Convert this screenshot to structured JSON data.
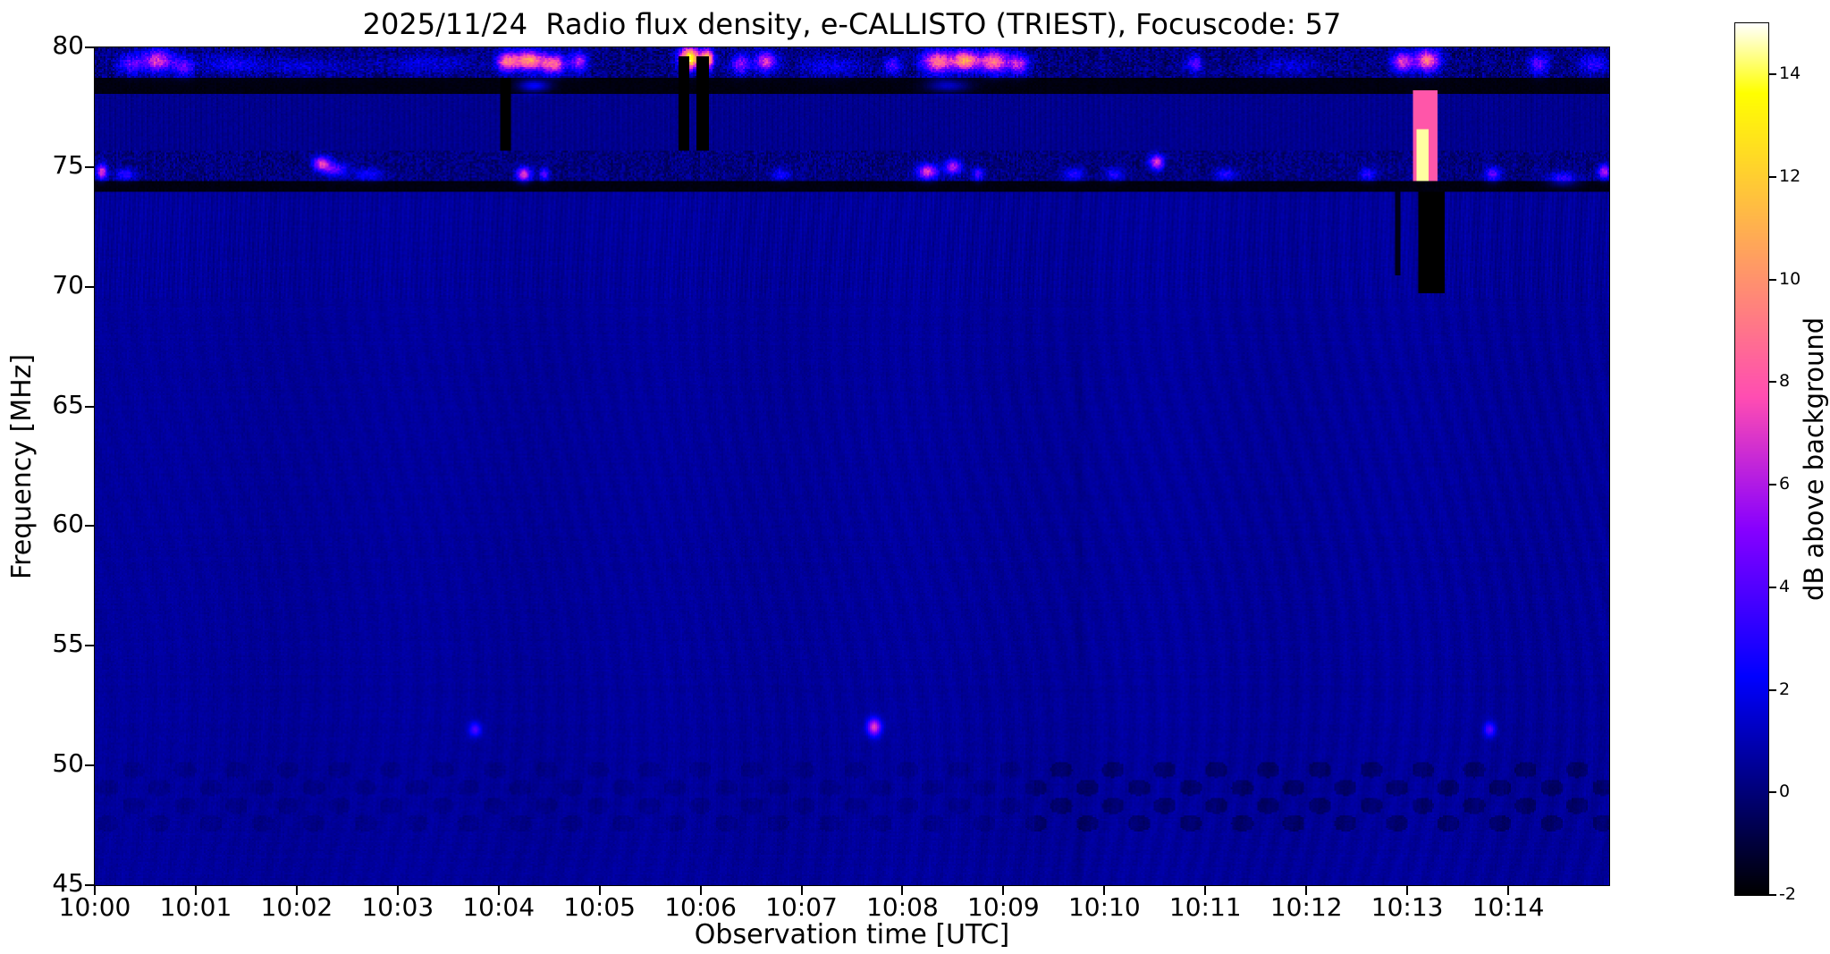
{
  "title": "2025/11/24  Radio flux density, e-CALLISTO (TRIEST), Focuscode: 57",
  "chart_data": {
    "type": "heatmap",
    "title": "2025/11/24  Radio flux density, e-CALLISTO (TRIEST), Focuscode: 57",
    "xlabel": "Observation time [UTC]",
    "ylabel": "Frequency [MHz]",
    "colorbar_label": "dB above background",
    "x_tick_labels": [
      "10:00",
      "10:01",
      "10:02",
      "10:03",
      "10:04",
      "10:05",
      "10:06",
      "10:07",
      "10:08",
      "10:09",
      "10:10",
      "10:11",
      "10:12",
      "10:13",
      "10:14"
    ],
    "x_range_minutes": [
      0,
      15
    ],
    "y_ticks": [
      45,
      50,
      55,
      60,
      65,
      70,
      75,
      80
    ],
    "ylim": [
      45,
      80
    ],
    "colorbar_ticks": [
      -2,
      0,
      2,
      4,
      6,
      8,
      10,
      12,
      14
    ],
    "clim": [
      -2,
      15
    ],
    "colormap": "gnuplot2",
    "grid": false,
    "background_db": 0.55,
    "bands": [
      {
        "name": "rfi-band-79MHz",
        "f0": 78.7,
        "f1": 80.0,
        "base": -1.2,
        "speckle": 2.6,
        "stripe": 0.0
      },
      {
        "name": "black-band-78MHz",
        "f0": 78.05,
        "f1": 78.7,
        "base": -1.9,
        "speckle": 0.3,
        "stripe": 0.0
      },
      {
        "name": "navy-band-76-78MHz",
        "f0": 75.7,
        "f1": 78.05,
        "base": 0.1,
        "speckle": 0.5,
        "stripe": 0.18
      },
      {
        "name": "rfi-band-75MHz",
        "f0": 74.4,
        "f1": 75.7,
        "base": -0.9,
        "speckle": 2.0,
        "stripe": 0.0
      },
      {
        "name": "black-band-74MHz",
        "f0": 74.0,
        "f1": 74.4,
        "base": -1.9,
        "speckle": 0.3,
        "stripe": 0.0
      }
    ],
    "bars": [
      {
        "t0": 4.02,
        "t1": 4.12,
        "f0": 75.7,
        "f1": 78.75,
        "v": -2
      },
      {
        "t0": 5.78,
        "t1": 5.89,
        "f0": 75.7,
        "f1": 79.6,
        "v": -2
      },
      {
        "t0": 5.96,
        "t1": 6.08,
        "f0": 75.7,
        "f1": 79.6,
        "v": -2
      },
      {
        "t0": 13.05,
        "t1": 13.3,
        "f0": 74.4,
        "f1": 78.2,
        "v": 8
      },
      {
        "t0": 13.09,
        "t1": 13.22,
        "f0": 74.4,
        "f1": 76.6,
        "v": 14.5
      },
      {
        "t0": 13.1,
        "t1": 13.38,
        "f0": 69.7,
        "f1": 74.0,
        "v": -2
      },
      {
        "t0": 12.88,
        "t1": 12.93,
        "f0": 70.5,
        "f1": 74.0,
        "v": -1.6
      }
    ],
    "bursts": [
      {
        "t": 0.35,
        "dt": 0.12,
        "f": 79.3,
        "df": 0.4,
        "v": 4
      },
      {
        "t": 0.62,
        "dt": 0.15,
        "f": 79.45,
        "df": 0.45,
        "v": 7
      },
      {
        "t": 0.88,
        "dt": 0.1,
        "f": 79.2,
        "df": 0.4,
        "v": 4
      },
      {
        "t": 1.35,
        "dt": 0.3,
        "f": 79.3,
        "df": 0.4,
        "v": 2
      },
      {
        "t": 2.1,
        "dt": 0.5,
        "f": 79.2,
        "df": 0.35,
        "v": 1.5
      },
      {
        "t": 3.3,
        "dt": 0.4,
        "f": 79.3,
        "df": 0.4,
        "v": 1.6
      },
      {
        "t": 4.08,
        "dt": 0.1,
        "f": 79.4,
        "df": 0.4,
        "v": 8
      },
      {
        "t": 4.3,
        "dt": 0.15,
        "f": 79.45,
        "df": 0.4,
        "v": 10
      },
      {
        "t": 4.55,
        "dt": 0.12,
        "f": 79.3,
        "df": 0.4,
        "v": 8
      },
      {
        "t": 4.8,
        "dt": 0.08,
        "f": 79.4,
        "df": 0.4,
        "v": 6
      },
      {
        "t": 5.9,
        "dt": 0.1,
        "f": 79.55,
        "df": 0.45,
        "v": 14
      },
      {
        "t": 6.07,
        "dt": 0.06,
        "f": 79.5,
        "df": 0.4,
        "v": 12
      },
      {
        "t": 6.4,
        "dt": 0.1,
        "f": 79.3,
        "df": 0.4,
        "v": 5
      },
      {
        "t": 6.65,
        "dt": 0.1,
        "f": 79.4,
        "df": 0.4,
        "v": 7
      },
      {
        "t": 7.3,
        "dt": 0.3,
        "f": 79.2,
        "df": 0.4,
        "v": 2
      },
      {
        "t": 7.9,
        "dt": 0.08,
        "f": 79.25,
        "df": 0.35,
        "v": 4
      },
      {
        "t": 8.35,
        "dt": 0.15,
        "f": 79.4,
        "df": 0.45,
        "v": 9
      },
      {
        "t": 8.62,
        "dt": 0.12,
        "f": 79.45,
        "df": 0.4,
        "v": 10
      },
      {
        "t": 8.9,
        "dt": 0.15,
        "f": 79.4,
        "df": 0.45,
        "v": 9
      },
      {
        "t": 9.15,
        "dt": 0.1,
        "f": 79.3,
        "df": 0.4,
        "v": 6
      },
      {
        "t": 10.9,
        "dt": 0.08,
        "f": 79.3,
        "df": 0.35,
        "v": 4
      },
      {
        "t": 11.8,
        "dt": 0.3,
        "f": 79.2,
        "df": 0.35,
        "v": 1.6
      },
      {
        "t": 12.95,
        "dt": 0.1,
        "f": 79.4,
        "df": 0.4,
        "v": 7
      },
      {
        "t": 13.2,
        "dt": 0.12,
        "f": 79.45,
        "df": 0.45,
        "v": 9
      },
      {
        "t": 14.3,
        "dt": 0.1,
        "f": 79.3,
        "df": 0.4,
        "v": 4
      },
      {
        "t": 14.85,
        "dt": 0.15,
        "f": 79.3,
        "df": 0.4,
        "v": 3
      },
      {
        "t": 0.07,
        "dt": 0.05,
        "f": 74.8,
        "df": 0.3,
        "v": 7
      },
      {
        "t": 0.3,
        "dt": 0.1,
        "f": 74.7,
        "df": 0.25,
        "v": 3
      },
      {
        "t": 2.25,
        "dt": 0.08,
        "f": 75.15,
        "df": 0.3,
        "v": 7
      },
      {
        "t": 2.38,
        "dt": 0.12,
        "f": 74.9,
        "df": 0.3,
        "v": 4
      },
      {
        "t": 2.72,
        "dt": 0.15,
        "f": 74.7,
        "df": 0.25,
        "v": 2.5
      },
      {
        "t": 4.25,
        "dt": 0.07,
        "f": 74.7,
        "df": 0.3,
        "v": 7
      },
      {
        "t": 4.45,
        "dt": 0.05,
        "f": 74.7,
        "df": 0.25,
        "v": 4
      },
      {
        "t": 6.8,
        "dt": 0.1,
        "f": 74.7,
        "df": 0.25,
        "v": 2.5
      },
      {
        "t": 8.25,
        "dt": 0.1,
        "f": 74.8,
        "df": 0.3,
        "v": 7
      },
      {
        "t": 8.5,
        "dt": 0.08,
        "f": 75.0,
        "df": 0.3,
        "v": 6
      },
      {
        "t": 8.75,
        "dt": 0.06,
        "f": 74.7,
        "df": 0.25,
        "v": 4
      },
      {
        "t": 9.7,
        "dt": 0.1,
        "f": 74.7,
        "df": 0.25,
        "v": 3
      },
      {
        "t": 10.1,
        "dt": 0.08,
        "f": 74.7,
        "df": 0.25,
        "v": 3
      },
      {
        "t": 10.52,
        "dt": 0.07,
        "f": 75.2,
        "df": 0.3,
        "v": 7
      },
      {
        "t": 11.2,
        "dt": 0.1,
        "f": 74.7,
        "df": 0.25,
        "v": 3
      },
      {
        "t": 12.6,
        "dt": 0.08,
        "f": 74.7,
        "df": 0.25,
        "v": 3
      },
      {
        "t": 13.85,
        "dt": 0.08,
        "f": 74.7,
        "df": 0.3,
        "v": 4
      },
      {
        "t": 14.55,
        "dt": 0.15,
        "f": 74.5,
        "df": 0.3,
        "v": 3
      },
      {
        "t": 14.95,
        "dt": 0.06,
        "f": 74.8,
        "df": 0.3,
        "v": 6
      },
      {
        "t": 4.35,
        "dt": 0.15,
        "f": 78.4,
        "df": 0.25,
        "v": 4
      },
      {
        "t": 8.45,
        "dt": 0.2,
        "f": 78.4,
        "df": 0.25,
        "v": 3
      },
      {
        "t": 3.77,
        "dt": 0.06,
        "f": 51.5,
        "df": 0.3,
        "v": 3.5
      },
      {
        "t": 7.72,
        "dt": 0.07,
        "f": 51.6,
        "df": 0.35,
        "v": 6.5
      },
      {
        "t": 13.82,
        "dt": 0.06,
        "f": 51.5,
        "df": 0.3,
        "v": 3.5
      }
    ]
  }
}
